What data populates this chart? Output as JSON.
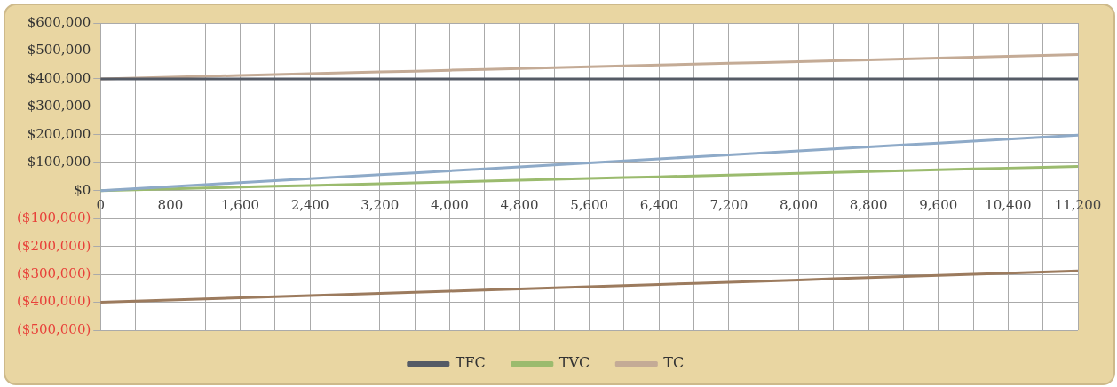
{
  "chart_data": {
    "type": "line",
    "categories": [
      "0",
      null,
      "800",
      null,
      "1,600",
      null,
      "2,400",
      null,
      "3,200",
      null,
      "4,000",
      null,
      "4,800",
      null,
      "5,600",
      null,
      "6,400",
      null,
      "7,200",
      null,
      "8,000",
      null,
      "8,800",
      null,
      "9,600",
      null,
      "10,400",
      null,
      "11,200"
    ],
    "series": [
      {
        "color": "#8eaac8",
        "values": [
          0,
          7100,
          14200,
          21300,
          28400,
          35500,
          42600,
          49700,
          56800,
          63900,
          71000,
          78100,
          85200,
          92300,
          99400,
          106500,
          113600,
          120700,
          127800,
          134900,
          142000,
          149100,
          156200,
          163300,
          170400,
          177500,
          184600,
          191700,
          198800
        ]
      },
      {
        "color": "#9c7b5e",
        "values": [
          -400000,
          -396000,
          -392000,
          -388000,
          -384000,
          -380000,
          -376000,
          -372000,
          -368000,
          -364000,
          -360000,
          -356000,
          -352000,
          -348000,
          -344000,
          -340000,
          -336000,
          -332000,
          -328000,
          -324000,
          -320000,
          -316000,
          -312000,
          -308000,
          -304000,
          -300000,
          -296000,
          -292000,
          -288000
        ]
      },
      {
        "name": "TFC",
        "color": "#555b66",
        "values": [
          400000,
          400000,
          400000,
          400000,
          400000,
          400000,
          400000,
          400000,
          400000,
          400000,
          400000,
          400000,
          400000,
          400000,
          400000,
          400000,
          400000,
          400000,
          400000,
          400000,
          400000,
          400000,
          400000,
          400000,
          400000,
          400000,
          400000,
          400000,
          400000
        ]
      },
      {
        "name": "TVC",
        "color": "#9bbb6e",
        "values": [
          0,
          3100,
          6200,
          9300,
          12400,
          15500,
          18600,
          21700,
          24800,
          27900,
          31000,
          34100,
          37200,
          40300,
          43400,
          46500,
          49600,
          52700,
          55800,
          58900,
          62000,
          65100,
          68200,
          71300,
          74400,
          77500,
          80600,
          83700,
          86800
        ]
      },
      {
        "name": "TC",
        "color": "#c4ab96",
        "values": [
          400000,
          403100,
          406200,
          409300,
          412400,
          415500,
          418600,
          421700,
          424800,
          427900,
          431000,
          434100,
          437200,
          440300,
          443400,
          446500,
          449600,
          452700,
          455800,
          458900,
          462000,
          465100,
          468200,
          471300,
          474400,
          477500,
          480600,
          483700,
          486800
        ]
      }
    ],
    "ylim": [
      -500000,
      600000
    ],
    "yticks": [
      {
        "value": -500000,
        "label": "($500,000)"
      },
      {
        "value": -400000,
        "label": "($400,000)"
      },
      {
        "value": -300000,
        "label": "($300,000)"
      },
      {
        "value": -200000,
        "label": "($200,000)"
      },
      {
        "value": -100000,
        "label": "($100,000)"
      },
      {
        "value": 0,
        "label": "$0"
      },
      {
        "value": 100000,
        "label": "$100,000"
      },
      {
        "value": 200000,
        "label": "$200,000"
      },
      {
        "value": 300000,
        "label": "$300,000"
      },
      {
        "value": 400000,
        "label": "$400,000"
      },
      {
        "value": 500000,
        "label": "$500,000"
      },
      {
        "value": 600000,
        "label": "$600,000"
      }
    ],
    "grid": true,
    "legend": "bottom",
    "marker": "none",
    "line_style": "solid"
  }
}
